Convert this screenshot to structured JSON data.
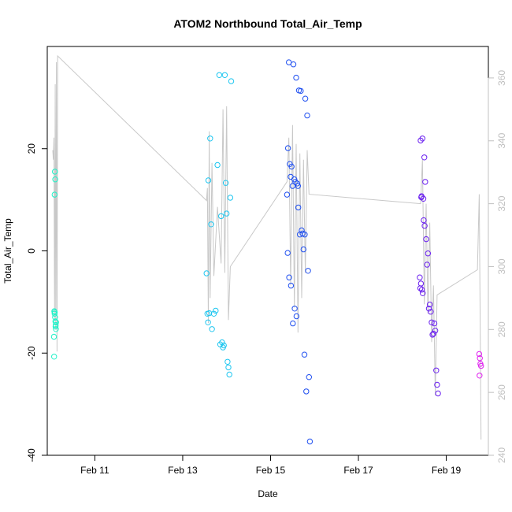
{
  "chart_data": {
    "type": "scatter",
    "title": "ATOM2 Northbound Total_Air_Temp",
    "xlabel": "Date",
    "ylabel": "Total_Air_Temp",
    "x_range": [
      "2016-02-09T22:00",
      "2016-02-19T23:00"
    ],
    "x_tick_dates": [
      "2016-02-11",
      "2016-02-13",
      "2016-02-15",
      "2016-02-17",
      "2016-02-19"
    ],
    "x_ticks": [
      "Feb 11",
      "Feb 13",
      "Feb 15",
      "Feb 17",
      "Feb 19"
    ],
    "ylim": [
      -40,
      40
    ],
    "y_ticks": [
      -40,
      -20,
      0,
      20
    ],
    "y_tick_labels": [
      "-40",
      "-20",
      "0",
      "20"
    ],
    "y2lim": [
      240,
      370
    ],
    "y2_ticks": [
      240,
      260,
      280,
      300,
      320,
      340,
      360
    ],
    "y2_tick_labels": [
      "240",
      "260",
      "280",
      "300",
      "320",
      "340",
      "360"
    ],
    "grid": false,
    "colors": {
      "axis": "#000000",
      "secondary_axis": "#c0c0c0",
      "line": "#c8c8c8"
    },
    "scatter_series": [
      {
        "color": "#1ef2c8",
        "points": [
          [
            "2016-02-10T02:00",
            11.0
          ],
          [
            "2016-02-10T02:10",
            15.5
          ],
          [
            "2016-02-10T02:20",
            14.0
          ],
          [
            "2016-02-10T01:50",
            -11.8
          ],
          [
            "2016-02-10T02:00",
            -12.3
          ],
          [
            "2016-02-10T02:15",
            -13.0
          ],
          [
            "2016-02-10T02:25",
            -13.8
          ],
          [
            "2016-02-10T02:35",
            -14.5
          ],
          [
            "2016-02-10T02:45",
            -15.3
          ],
          [
            "2016-02-10T02:50",
            -14.0
          ],
          [
            "2016-02-10T01:40",
            -16.8
          ],
          [
            "2016-02-10T01:45",
            -20.7
          ],
          [
            "2016-02-10T02:05",
            -12.0
          ],
          [
            "2016-02-10T02:30",
            -14.8
          ]
        ]
      },
      {
        "color": "#1ec6f0",
        "points": [
          [
            "2016-02-13T13:00",
            -4.4
          ],
          [
            "2016-02-13T14:00",
            13.8
          ],
          [
            "2016-02-13T15:00",
            22.0
          ],
          [
            "2016-02-13T15:30",
            5.2
          ],
          [
            "2016-02-13T13:30",
            -12.3
          ],
          [
            "2016-02-13T14:30",
            -12.2
          ],
          [
            "2016-02-13T13:50",
            -14.0
          ],
          [
            "2016-02-13T16:00",
            -15.3
          ],
          [
            "2016-02-13T17:00",
            -12.3
          ],
          [
            "2016-02-13T18:00",
            -11.7
          ],
          [
            "2016-02-13T19:00",
            16.8
          ],
          [
            "2016-02-13T20:00",
            34.4
          ],
          [
            "2016-02-13T21:00",
            6.8
          ],
          [
            "2016-02-13T21:30",
            -17.9
          ],
          [
            "2016-02-13T22:00",
            -18.9
          ],
          [
            "2016-02-13T22:30",
            -18.5
          ],
          [
            "2016-02-13T23:00",
            34.4
          ],
          [
            "2016-02-13T23:30",
            13.3
          ],
          [
            "2016-02-14T00:00",
            7.3
          ],
          [
            "2016-02-14T00:30",
            -21.7
          ],
          [
            "2016-02-14T01:00",
            -22.8
          ],
          [
            "2016-02-14T01:30",
            -24.2
          ],
          [
            "2016-02-14T02:00",
            10.4
          ],
          [
            "2016-02-14T02:30",
            33.2
          ],
          [
            "2016-02-13T20:30",
            -18.3
          ]
        ]
      },
      {
        "color": "#1f4ff0",
        "points": [
          [
            "2016-02-15T09:00",
            11.0
          ],
          [
            "2016-02-15T09:30",
            20.1
          ],
          [
            "2016-02-15T10:00",
            36.9
          ],
          [
            "2016-02-15T10:30",
            17.0
          ],
          [
            "2016-02-15T11:00",
            14.5
          ],
          [
            "2016-02-15T11:30",
            16.5
          ],
          [
            "2016-02-15T12:00",
            12.7
          ],
          [
            "2016-02-15T12:30",
            36.5
          ],
          [
            "2016-02-15T13:00",
            14.0
          ],
          [
            "2016-02-15T13:30",
            13.5
          ],
          [
            "2016-02-15T14:00",
            33.9
          ],
          [
            "2016-02-15T14:30",
            13.2
          ],
          [
            "2016-02-15T15:00",
            12.7
          ],
          [
            "2016-02-15T15:30",
            31.4
          ],
          [
            "2016-02-15T09:20",
            -0.4
          ],
          [
            "2016-02-15T10:10",
            -5.2
          ],
          [
            "2016-02-15T11:10",
            -6.8
          ],
          [
            "2016-02-15T12:10",
            -14.2
          ],
          [
            "2016-02-15T13:10",
            -11.3
          ],
          [
            "2016-02-15T14:10",
            -12.8
          ],
          [
            "2016-02-15T15:10",
            8.5
          ],
          [
            "2016-02-15T16:00",
            3.2
          ],
          [
            "2016-02-15T16:30",
            31.3
          ],
          [
            "2016-02-15T17:00",
            4.0
          ],
          [
            "2016-02-15T17:30",
            3.4
          ],
          [
            "2016-02-15T18:00",
            0.3
          ],
          [
            "2016-02-15T18:30",
            -20.3
          ],
          [
            "2016-02-15T19:00",
            29.8
          ],
          [
            "2016-02-15T19:30",
            -27.5
          ],
          [
            "2016-02-15T20:00",
            26.5
          ],
          [
            "2016-02-15T20:30",
            -3.9
          ],
          [
            "2016-02-15T21:00",
            -24.7
          ],
          [
            "2016-02-15T21:30",
            -37.3
          ],
          [
            "2016-02-15T18:40",
            3.2
          ]
        ]
      },
      {
        "color": "#6a1ff0",
        "points": [
          [
            "2016-02-18T10:00",
            21.6
          ],
          [
            "2016-02-18T11:00",
            22.0
          ],
          [
            "2016-02-18T10:30",
            10.7
          ],
          [
            "2016-02-18T11:30",
            10.2
          ],
          [
            "2016-02-18T12:00",
            18.3
          ],
          [
            "2016-02-18T12:30",
            13.5
          ],
          [
            "2016-02-18T09:30",
            -5.2
          ],
          [
            "2016-02-18T10:10",
            -6.4
          ],
          [
            "2016-02-18T09:50",
            -7.3
          ],
          [
            "2016-02-18T10:40",
            -7.6
          ],
          [
            "2016-02-18T11:10",
            -8.3
          ],
          [
            "2016-02-18T11:40",
            6.0
          ],
          [
            "2016-02-18T12:10",
            4.9
          ],
          [
            "2016-02-18T13:00",
            2.3
          ],
          [
            "2016-02-18T13:30",
            -2.7
          ],
          [
            "2016-02-18T14:00",
            -0.5
          ],
          [
            "2016-02-18T14:30",
            -11.3
          ],
          [
            "2016-02-18T15:00",
            -10.5
          ],
          [
            "2016-02-18T15:30",
            -11.9
          ],
          [
            "2016-02-18T16:00",
            -14.0
          ],
          [
            "2016-02-18T16:30",
            -16.4
          ],
          [
            "2016-02-18T17:00",
            -16.2
          ],
          [
            "2016-02-18T17:30",
            -14.2
          ],
          [
            "2016-02-18T18:00",
            -15.6
          ],
          [
            "2016-02-18T18:30",
            -23.4
          ],
          [
            "2016-02-18T19:00",
            -26.2
          ],
          [
            "2016-02-18T19:30",
            -27.9
          ],
          [
            "2016-02-18T10:20",
            10.5
          ]
        ]
      },
      {
        "color": "#e01ff0",
        "points": [
          [
            "2016-02-19T18:00",
            -20.2
          ],
          [
            "2016-02-19T18:20",
            -21.0
          ],
          [
            "2016-02-19T18:40",
            -22.1
          ],
          [
            "2016-02-19T19:00",
            -22.5
          ],
          [
            "2016-02-19T18:10",
            -24.4
          ]
        ]
      }
    ],
    "line_series": {
      "axis": "secondary",
      "color": "#c8c8c8",
      "points": [
        [
          "2016-02-10T01:00",
          337
        ],
        [
          "2016-02-10T01:20",
          334
        ],
        [
          "2016-02-10T01:40",
          341
        ],
        [
          "2016-02-10T02:00",
          283
        ],
        [
          "2016-02-10T02:20",
          358
        ],
        [
          "2016-02-10T02:40",
          280
        ],
        [
          "2016-02-10T03:00",
          365
        ],
        [
          "2016-02-10T03:20",
          273
        ],
        [
          "2016-02-10T03:40",
          367
        ],
        [
          "2016-02-13T13:00",
          321
        ],
        [
          "2016-02-13T13:30",
          325
        ],
        [
          "2016-02-13T14:00",
          282
        ],
        [
          "2016-02-13T14:30",
          343
        ],
        [
          "2016-02-13T15:00",
          290
        ],
        [
          "2016-02-13T16:00",
          333
        ],
        [
          "2016-02-13T17:00",
          297
        ],
        [
          "2016-02-13T19:00",
          319
        ],
        [
          "2016-02-13T21:00",
          301
        ],
        [
          "2016-02-13T22:00",
          350
        ],
        [
          "2016-02-13T23:00",
          298
        ],
        [
          "2016-02-14T00:00",
          351
        ],
        [
          "2016-02-14T01:00",
          283
        ],
        [
          "2016-02-14T02:00",
          300
        ],
        [
          "2016-02-15T09:00",
          327
        ],
        [
          "2016-02-15T10:00",
          341
        ],
        [
          "2016-02-15T11:00",
          294
        ],
        [
          "2016-02-15T12:00",
          345
        ],
        [
          "2016-02-15T13:00",
          287
        ],
        [
          "2016-02-15T14:00",
          339
        ],
        [
          "2016-02-15T15:00",
          279
        ],
        [
          "2016-02-15T16:00",
          336
        ],
        [
          "2016-02-15T17:00",
          290
        ],
        [
          "2016-02-15T18:00",
          334
        ],
        [
          "2016-02-15T19:00",
          298
        ],
        [
          "2016-02-15T20:00",
          337
        ],
        [
          "2016-02-15T21:00",
          323
        ],
        [
          "2016-02-18T10:00",
          320
        ],
        [
          "2016-02-18T11:00",
          334
        ],
        [
          "2016-02-18T12:00",
          288
        ],
        [
          "2016-02-18T13:00",
          320
        ],
        [
          "2016-02-18T14:00",
          285
        ],
        [
          "2016-02-18T15:00",
          314
        ],
        [
          "2016-02-18T16:00",
          276
        ],
        [
          "2016-02-18T17:00",
          294
        ],
        [
          "2016-02-18T18:00",
          259
        ],
        [
          "2016-02-18T19:00",
          291
        ],
        [
          "2016-02-19T17:00",
          299
        ],
        [
          "2016-02-19T18:00",
          323
        ],
        [
          "2016-02-19T19:00",
          245
        ]
      ]
    }
  }
}
